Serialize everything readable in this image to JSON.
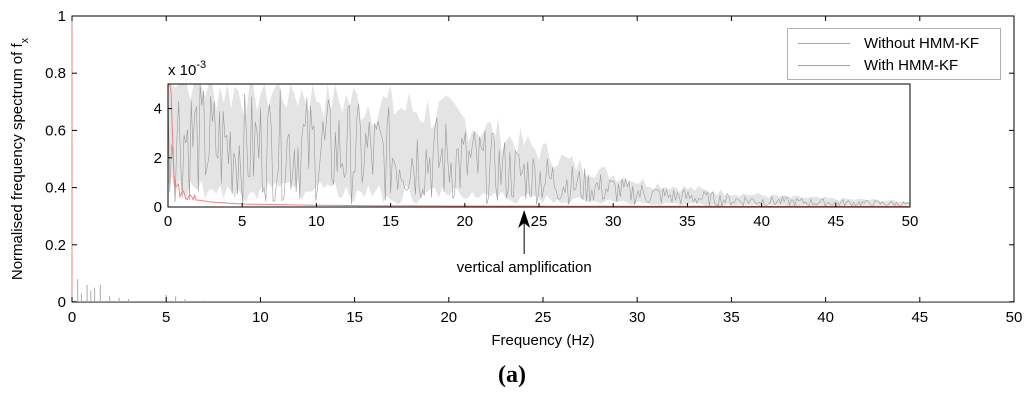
{
  "chart_data": [
    {
      "type": "line",
      "title": "",
      "xlabel": "Frequency (Hz)",
      "ylabel_main": "Normalised frequency spectrum of f",
      "ylabel_sub": "x",
      "xlim": [
        0,
        50
      ],
      "ylim": [
        0,
        1
      ],
      "xticks": [
        "0",
        "5",
        "10",
        "15",
        "20",
        "25",
        "30",
        "35",
        "40",
        "45",
        "50"
      ],
      "yticks": [
        "0",
        "0.2",
        "0.4",
        "0.6",
        "0.8",
        "1"
      ],
      "legend_placement": "top-right",
      "series": [
        {
          "name": "Without HMM-KF",
          "color": "#a8a8a8",
          "x": [
            0.3,
            0.5,
            0.8,
            1.0,
            1.2,
            1.5,
            2.0,
            2.5,
            3.0,
            5.0,
            5.5,
            6.0,
            7.0,
            10.0,
            20.0,
            30.0,
            40.0,
            50.0
          ],
          "y": [
            0.08,
            0.03,
            0.06,
            0.04,
            0.05,
            0.06,
            0.02,
            0.015,
            0.01,
            0.025,
            0.02,
            0.01,
            0.005,
            0.003,
            0.002,
            0.001,
            0.0005,
            0.0003
          ]
        },
        {
          "name": "With HMM-KF",
          "color": "#f08080",
          "x": [
            0.0,
            0.1,
            0.3,
            0.6,
            1.0,
            2.0,
            5.0,
            10.0,
            17.5,
            20.0,
            30.0,
            40.0,
            50.0
          ],
          "y": [
            1.0,
            0.005,
            0.004,
            0.003,
            0.002,
            0.0015,
            0.001,
            0.0006,
            0.004,
            0.0004,
            0.0003,
            0.0002,
            0.0001
          ]
        }
      ]
    },
    {
      "type": "line",
      "title": "",
      "inset": true,
      "scale_label": "x 10",
      "scale_exp": "-3",
      "xlim": [
        0,
        50
      ],
      "ylim": [
        0,
        5
      ],
      "xticks": [
        "0",
        "5",
        "10",
        "15",
        "20",
        "25",
        "30",
        "35",
        "40",
        "45",
        "50"
      ],
      "yticks": [
        "0",
        "2",
        "4"
      ],
      "series": [
        {
          "name": "Without HMM-KF",
          "color": "#a8a8a8",
          "x": [
            0,
            2.5,
            5,
            7.5,
            10,
            12.5,
            15,
            17.5,
            20,
            22.5,
            25,
            27.5,
            30,
            32.5,
            35,
            37.5,
            40,
            42.5,
            45,
            47.5,
            50
          ],
          "y": [
            3.2,
            2.6,
            2.4,
            2.5,
            2.4,
            2.2,
            2.1,
            2.0,
            1.8,
            1.5,
            1.2,
            0.9,
            0.7,
            0.5,
            0.4,
            0.3,
            0.25,
            0.2,
            0.17,
            0.15,
            0.12
          ],
          "spread": [
            3.0,
            2.4,
            2.3,
            2.3,
            2.2,
            2.1,
            2.0,
            1.9,
            1.7,
            1.4,
            1.1,
            0.8,
            0.6,
            0.45,
            0.35,
            0.28,
            0.22,
            0.18,
            0.15,
            0.13,
            0.1
          ]
        },
        {
          "name": "With HMM-KF",
          "color": "#f08080",
          "x": [
            0,
            0.2,
            0.4,
            0.7,
            1.0,
            1.5,
            2,
            3,
            5,
            10,
            15,
            20,
            30,
            40,
            50
          ],
          "y": [
            4.8,
            3.2,
            1.0,
            0.6,
            0.45,
            0.35,
            0.28,
            0.2,
            0.12,
            0.07,
            0.05,
            0.04,
            0.03,
            0.025,
            0.02
          ]
        }
      ]
    }
  ],
  "annotation": {
    "text": "vertical amplification",
    "arrow_x": 24
  },
  "panel_label": "(a)"
}
